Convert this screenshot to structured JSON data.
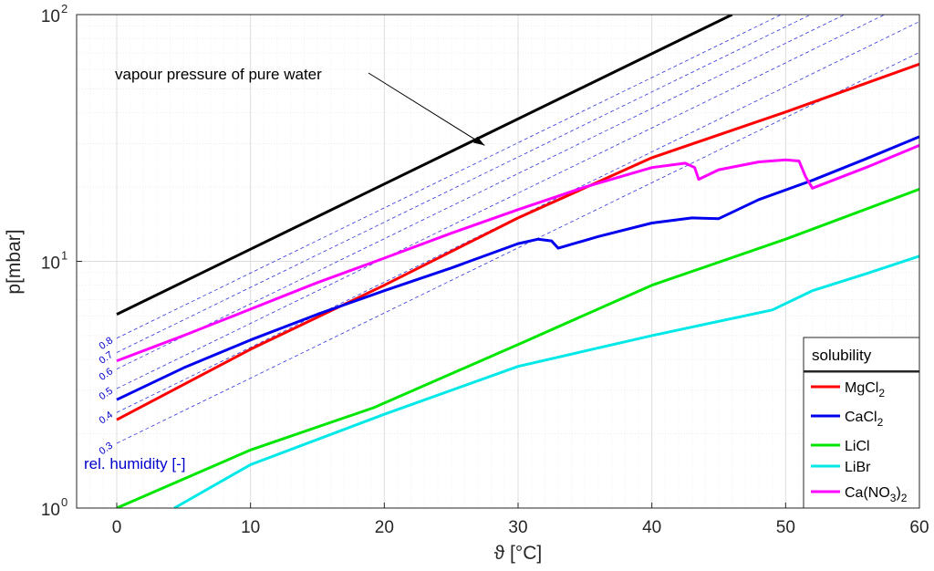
{
  "chart_data": {
    "type": "line",
    "xlabel": "ϑ [°C]",
    "ylabel": "p[mbar]",
    "xlim": [
      -3,
      60
    ],
    "ylim": [
      1,
      100
    ],
    "yscale": "log",
    "grid": true,
    "x_ticks": [
      "0",
      "10",
      "20",
      "30",
      "40",
      "50",
      "60"
    ],
    "y_ticks": [
      {
        "base": "10",
        "exp": "0"
      },
      {
        "base": "10",
        "exp": "1"
      },
      {
        "base": "10",
        "exp": "2"
      }
    ],
    "annotation": {
      "text": "vapour pressure of pure water",
      "arrow_to": [
        27.5,
        29.5
      ]
    },
    "rh_caption": "rel. humidity [-]",
    "rh_lines": [
      {
        "rh": 0.3,
        "label": "0.3"
      },
      {
        "rh": 0.4,
        "label": "0.4"
      },
      {
        "rh": 0.5,
        "label": "0.5"
      },
      {
        "rh": 0.6,
        "label": "0.6"
      },
      {
        "rh": 0.7,
        "label": "0.7"
      },
      {
        "rh": 0.8,
        "label": "0.8"
      }
    ],
    "water": {
      "color": "#000000",
      "x": [
        0,
        46
      ],
      "y": [
        6.1,
        100
      ]
    },
    "legend": {
      "title": "solubility",
      "placement": "bottom-right",
      "entries": [
        {
          "base": "MgCl",
          "sub": "2",
          "rest": ""
        },
        {
          "base": "CaCl",
          "sub": "2",
          "rest": ""
        },
        {
          "base": "LiCl",
          "sub": "",
          "rest": ""
        },
        {
          "base": "LiBr",
          "sub": "",
          "rest": ""
        },
        {
          "base": "Ca(NO",
          "sub": "3",
          "rest": ")",
          "sub2": "2"
        }
      ]
    },
    "series": [
      {
        "name": "MgCl2",
        "color": "#ff0000",
        "x": [
          0,
          10,
          20,
          30,
          40,
          50,
          60
        ],
        "y": [
          2.28,
          4.4,
          8.0,
          15.0,
          26.3,
          40.3,
          63.0
        ]
      },
      {
        "name": "CaCl2",
        "color": "#0000ee",
        "x": [
          0,
          5,
          10,
          15,
          20,
          25,
          30,
          31.5,
          32.5,
          33,
          36,
          40,
          43,
          45,
          48,
          52,
          56,
          60
        ],
        "y": [
          2.75,
          3.7,
          4.8,
          6.1,
          7.6,
          9.4,
          11.8,
          12.3,
          12.1,
          11.3,
          12.6,
          14.3,
          15.0,
          14.9,
          17.8,
          21.3,
          26.0,
          32.0
        ]
      },
      {
        "name": "LiCl",
        "color": "#00e600",
        "x": [
          0,
          10,
          19.2,
          30,
          40,
          50,
          60
        ],
        "y": [
          1.0,
          1.72,
          2.55,
          4.6,
          8.0,
          12.3,
          19.6
        ]
      },
      {
        "name": "LiBr",
        "color": "#00e8e8",
        "x": [
          4.3,
          10,
          20,
          30,
          40,
          49,
          52,
          56,
          60
        ],
        "y": [
          1.0,
          1.5,
          2.4,
          3.75,
          5.0,
          6.35,
          7.6,
          8.9,
          10.5
        ]
      },
      {
        "name": "Ca(NO3)2",
        "color": "#ff00ff",
        "x": [
          0,
          5,
          10,
          15,
          20,
          25,
          30,
          35,
          40,
          42.5,
          43.2,
          43.5,
          45,
          48,
          50,
          51,
          51.5,
          52,
          56,
          60
        ],
        "y": [
          3.95,
          5.0,
          6.4,
          8.2,
          10.3,
          13.0,
          16.2,
          20.0,
          24.0,
          25.0,
          24.0,
          21.5,
          23.5,
          25.3,
          25.8,
          25.5,
          22.0,
          19.8,
          24.0,
          29.5
        ]
      }
    ]
  }
}
